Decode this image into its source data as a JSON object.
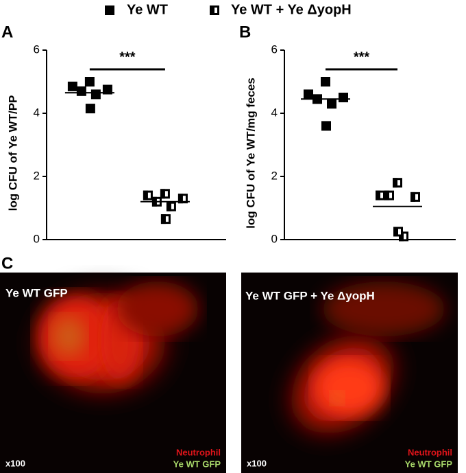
{
  "legend": [
    {
      "name": "Ye WT",
      "style": "filled"
    },
    {
      "name": "Ye WT + Ye ΔyopH",
      "style": "half"
    }
  ],
  "chart_data": [
    {
      "type": "scatter",
      "panel": "A",
      "ylabel": "log CFU of Ye WT/PP",
      "ylim": [
        0,
        6
      ],
      "yticks": [
        0,
        2,
        4,
        6
      ],
      "annotation": "***",
      "series": [
        {
          "style": "filled",
          "color": "#000000",
          "values": [
            4.85,
            5.0,
            4.7,
            4.75,
            4.6,
            4.15
          ],
          "mean": 4.65
        },
        {
          "style": "half",
          "color": "#000000",
          "values": [
            1.4,
            1.45,
            1.2,
            1.3,
            1.05,
            0.65
          ],
          "mean": 1.2
        }
      ]
    },
    {
      "type": "scatter",
      "panel": "B",
      "ylabel": "log CFU of Ye WT/mg feces",
      "ylim": [
        0,
        6
      ],
      "yticks": [
        0,
        2,
        4,
        6
      ],
      "annotation": "***",
      "series": [
        {
          "style": "filled",
          "color": "#000000",
          "values": [
            4.6,
            5.0,
            4.45,
            4.5,
            4.3,
            3.6
          ],
          "mean": 4.45
        },
        {
          "style": "half",
          "color": "#000000",
          "values": [
            1.4,
            1.8,
            1.4,
            1.35,
            0.1,
            0.25
          ],
          "mean": 1.05
        }
      ]
    }
  ],
  "panel_c": {
    "panel": "C",
    "images": [
      {
        "title": "Ye WT GFP",
        "magnification": "x100",
        "stain_red": "Neutrophil",
        "stain_green": "Ye WT GFP"
      },
      {
        "title": "Ye WT GFP + Ye ΔyopH",
        "magnification": "x100",
        "stain_red": "Neutrophil",
        "stain_green": "Ye WT GFP"
      }
    ]
  }
}
